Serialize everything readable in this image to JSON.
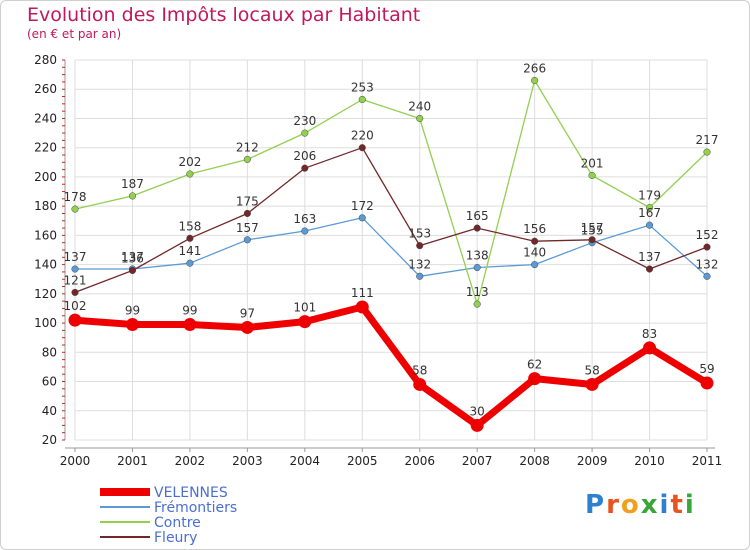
{
  "title": "Evolution des Impôts locaux par Habitant",
  "subtitle": "(en € et par an)",
  "brand": {
    "text": "Proxiti",
    "letter_colors": [
      "#2f80d0",
      "#e8531f",
      "#f0a020",
      "#3aa63a",
      "#2f80d0",
      "#e8531f",
      "#3aa63a"
    ]
  },
  "chart_data": {
    "type": "line",
    "x": [
      "2000",
      "2001",
      "2002",
      "2003",
      "2004",
      "2005",
      "2006",
      "2007",
      "2008",
      "2009",
      "2010",
      "2011"
    ],
    "ylim": [
      20,
      280
    ],
    "yticks": [
      20,
      40,
      60,
      80,
      100,
      120,
      140,
      160,
      180,
      200,
      220,
      240,
      260,
      280
    ],
    "grid": true,
    "legend_position": "bottom-left",
    "series": [
      {
        "name": "VELENNES",
        "color": "#ee0000",
        "emphasis": true,
        "values": [
          102,
          99,
          99,
          97,
          101,
          111,
          58,
          30,
          62,
          58,
          83,
          59
        ]
      },
      {
        "name": "Frémontiers",
        "color": "#5b9bd5",
        "values": [
          137,
          137,
          141,
          157,
          163,
          172,
          132,
          138,
          140,
          155,
          167,
          132
        ]
      },
      {
        "name": "Contre",
        "color": "#92d050",
        "values": [
          178,
          187,
          202,
          212,
          230,
          253,
          240,
          113,
          266,
          201,
          179,
          217
        ]
      },
      {
        "name": "Fleury",
        "color": "#722828",
        "values": [
          121,
          136,
          158,
          175,
          206,
          220,
          153,
          165,
          156,
          157,
          137,
          152
        ]
      }
    ]
  }
}
